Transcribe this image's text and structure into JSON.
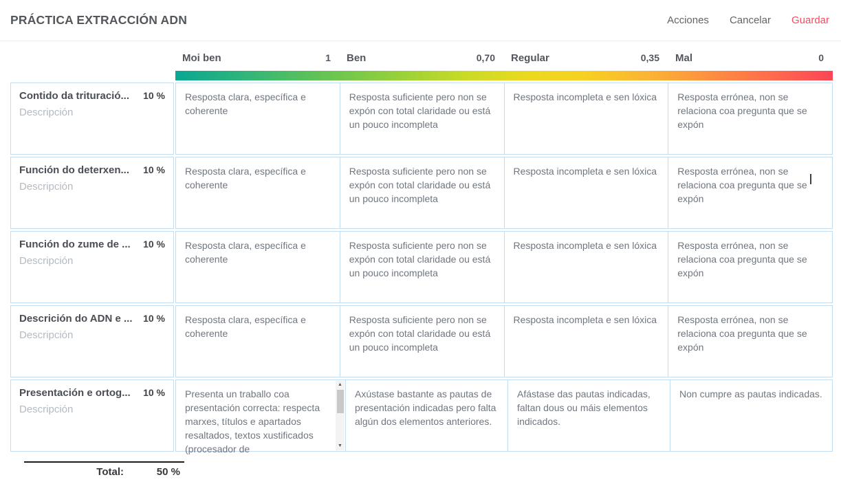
{
  "page": {
    "title": "PRÁCTICA EXTRACCIÓN ADN",
    "actions": {
      "acciones": "Acciones",
      "cancelar": "Cancelar",
      "guardar": "Guardar"
    }
  },
  "colors": {
    "accent_red": "#f9495c",
    "cell_border": "#c3dcef",
    "gradient_start": "#0aa794",
    "gradient_middle": "#ecd91f",
    "gradient_end": "#fb4556"
  },
  "rubric": {
    "levels": [
      {
        "label": "Moi ben",
        "value": "1"
      },
      {
        "label": "Ben",
        "value": "0,70"
      },
      {
        "label": "Regular",
        "value": "0,35"
      },
      {
        "label": "Mal",
        "value": "0"
      }
    ],
    "rows": [
      {
        "name": "Contido da trituració...",
        "weight": "10 %",
        "description_placeholder": "Descripción",
        "cells": [
          "Resposta clara, específica e coherente",
          "Resposta suficiente pero non se expón con total claridade ou está un pouco incompleta",
          "Resposta incompleta e sen lóxica",
          "Resposta errónea, non se relaciona coa pregunta que se expón"
        ]
      },
      {
        "name": "Función do deterxen...",
        "weight": "10 %",
        "description_placeholder": "Descripción",
        "cells": [
          "Resposta clara, específica e coherente",
          "Resposta suficiente pero non se expón con total claridade ou está un pouco incompleta",
          "Resposta incompleta e sen lóxica",
          "Resposta errónea, non se relaciona coa pregunta que se expón"
        ]
      },
      {
        "name": "Función do zume de ...",
        "weight": "10 %",
        "description_placeholder": "Descripción",
        "cells": [
          "Resposta clara, específica e coherente",
          "Resposta suficiente pero non se expón con total claridade ou está un pouco incompleta",
          "Resposta incompleta e sen lóxica",
          "Resposta errónea, non se relaciona coa pregunta que se expón"
        ]
      },
      {
        "name": "Descrición do ADN e ...",
        "weight": "10 %",
        "description_placeholder": "Descripción",
        "cells": [
          "Resposta clara, específica e coherente",
          "Resposta suficiente pero non se expón con total claridade ou está un pouco incompleta",
          "Resposta incompleta e sen lóxica",
          "Resposta errónea, non se relaciona coa pregunta que se expón"
        ]
      },
      {
        "name": "Presentación e ortog...",
        "weight": "10 %",
        "description_placeholder": "Descripción",
        "cells": [
          "Presenta un traballo coa presentación correcta: respecta marxes, títulos e apartados resaltados, textos xustificados (procesador de",
          "Axústase bastante as pautas de presentación indicadas pero falta algún dos elementos anteriores.",
          "Afástase das pautas indicadas, faltan dous ou máis elementos indicados.",
          "Non cumpre as pautas indicadas."
        ]
      }
    ],
    "total": {
      "label": "Total:",
      "value": "50 %"
    }
  }
}
